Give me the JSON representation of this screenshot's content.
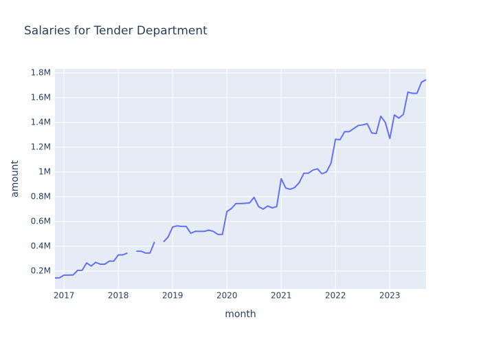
{
  "chart_data": {
    "type": "line",
    "title": "Salaries for Tender Department",
    "x_label": "month",
    "y_label": "amount",
    "x": [
      "2016-11",
      "2016-12",
      "2017-01",
      "2017-02",
      "2017-03",
      "2017-04",
      "2017-05",
      "2017-06",
      "2017-07",
      "2017-08",
      "2017-09",
      "2017-10",
      "2017-11",
      "2017-12",
      "2018-01",
      "2018-02",
      "2018-03",
      "2018-04",
      "2018-05",
      "2018-06",
      "2018-07",
      "2018-08",
      "2018-09",
      "2018-10",
      "2018-11",
      "2018-12",
      "2019-01",
      "2019-02",
      "2019-03",
      "2019-04",
      "2019-05",
      "2019-06",
      "2019-07",
      "2019-08",
      "2019-09",
      "2019-10",
      "2019-11",
      "2019-12",
      "2020-01",
      "2020-02",
      "2020-03",
      "2020-04",
      "2020-05",
      "2020-06",
      "2020-07",
      "2020-08",
      "2020-09",
      "2020-10",
      "2020-11",
      "2020-12",
      "2021-01",
      "2021-02",
      "2021-03",
      "2021-04",
      "2021-05",
      "2021-06",
      "2021-07",
      "2021-08",
      "2021-09",
      "2021-10",
      "2021-11",
      "2021-12",
      "2022-01",
      "2022-02",
      "2022-03",
      "2022-04",
      "2022-05",
      "2022-06",
      "2022-07",
      "2022-08",
      "2022-09",
      "2022-10",
      "2022-11",
      "2022-12",
      "2023-01",
      "2023-02",
      "2023-03",
      "2023-04",
      "2023-05",
      "2023-06",
      "2023-07",
      "2023-08",
      "2023-09"
    ],
    "series": [
      {
        "color": "#636efa",
        "values": [
          144000,
          145000,
          167000,
          167000,
          168000,
          205000,
          206000,
          265000,
          240000,
          270000,
          255000,
          255000,
          280000,
          280000,
          330000,
          330000,
          345000,
          null,
          360000,
          360000,
          345000,
          345000,
          435000,
          null,
          435000,
          475000,
          555000,
          565000,
          560000,
          560000,
          505000,
          520000,
          520000,
          520000,
          530000,
          520000,
          495000,
          495000,
          680000,
          705000,
          745000,
          745000,
          747000,
          750000,
          795000,
          720000,
          700000,
          725000,
          710000,
          720000,
          945000,
          870000,
          860000,
          875000,
          915000,
          990000,
          990000,
          1015000,
          1025000,
          985000,
          1000000,
          1070000,
          1265000,
          1260000,
          1325000,
          1325000,
          1350000,
          1375000,
          1380000,
          1390000,
          1315000,
          1310000,
          1450000,
          1400000,
          1270000,
          1460000,
          1435000,
          1465000,
          1645000,
          1635000,
          1635000,
          1725000,
          1745000
        ]
      }
    ],
    "xlim": [
      "2016-11",
      "2023-09"
    ],
    "xticks": [
      {
        "value": "2017-01",
        "label": "2017"
      },
      {
        "value": "2018-01",
        "label": "2018"
      },
      {
        "value": "2019-01",
        "label": "2019"
      },
      {
        "value": "2020-01",
        "label": "2020"
      },
      {
        "value": "2021-01",
        "label": "2021"
      },
      {
        "value": "2022-01",
        "label": "2022"
      },
      {
        "value": "2023-01",
        "label": "2023"
      }
    ],
    "ylim": [
      55000,
      1833000
    ],
    "yticks": [
      {
        "value": 200000,
        "label": "0.2M"
      },
      {
        "value": 400000,
        "label": "0.4M"
      },
      {
        "value": 600000,
        "label": "0.6M"
      },
      {
        "value": 800000,
        "label": "0.8M"
      },
      {
        "value": 1000000,
        "label": "1M"
      },
      {
        "value": 1200000,
        "label": "1.2M"
      },
      {
        "value": 1400000,
        "label": "1.4M"
      },
      {
        "value": 1600000,
        "label": "1.6M"
      },
      {
        "value": 1800000,
        "label": "1.8M"
      }
    ],
    "grid": true
  }
}
